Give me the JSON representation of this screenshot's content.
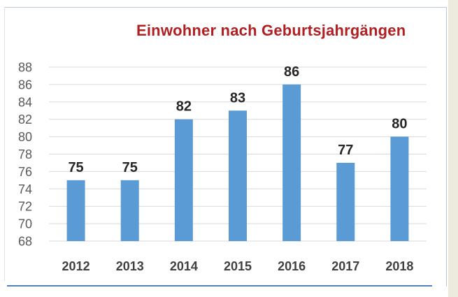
{
  "chart_data": {
    "type": "bar",
    "title": "Einwohner nach Geburtsjahrgängen",
    "categories": [
      "2012",
      "2013",
      "2014",
      "2015",
      "2016",
      "2017",
      "2018"
    ],
    "values": [
      75,
      75,
      82,
      83,
      86,
      77,
      80
    ],
    "data_labels": [
      "75",
      "75",
      "82",
      "83",
      "86",
      "77",
      "80"
    ],
    "y_ticks": [
      68,
      70,
      72,
      74,
      76,
      78,
      80,
      82,
      84,
      86,
      88
    ],
    "ylim": [
      68,
      88
    ],
    "xlabel": "",
    "ylabel": "",
    "grid": true,
    "legend": "none",
    "colors": {
      "bar": "#5b9bd5",
      "title": "#b11f22",
      "grid": "#d9d9d9"
    }
  }
}
